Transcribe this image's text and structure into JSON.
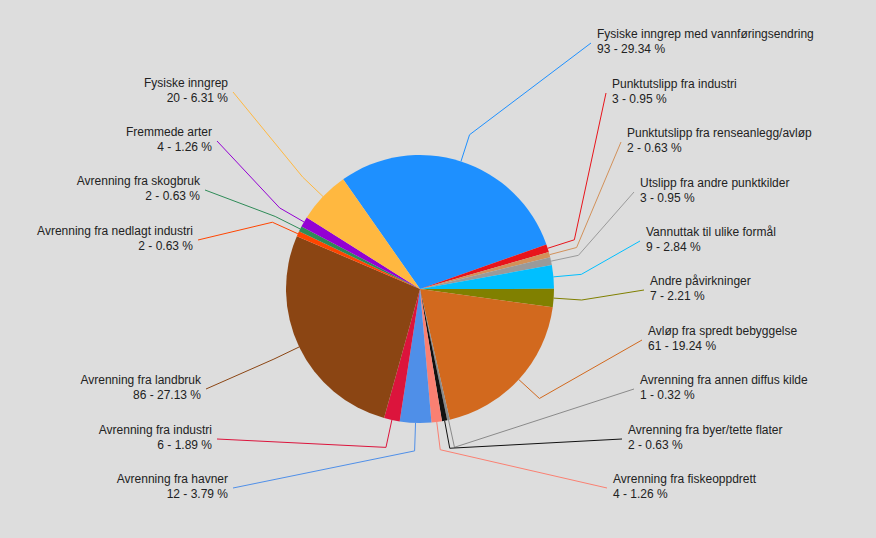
{
  "chart_data": {
    "type": "pie",
    "categories": [
      "Fysiske inngrep med vannføringsendring",
      "Punktutslipp fra industri",
      "Punktutslipp fra renseanlegg/avløp",
      "Utslipp fra andre punktkilder",
      "Vannuttak til ulike formål",
      "Andre påvirkninger",
      "Avløp fra spredt bebyggelse",
      "Avrenning fra annen diffus kilde",
      "Avrenning fra byer/tette flater",
      "Avrenning fra fiskeoppdrett",
      "Avrenning fra havner",
      "Avrenning fra industri",
      "Avrenning fra landbruk",
      "Avrenning fra nedlagt industri",
      "Avrenning fra skogbruk",
      "Fremmede arter",
      "Fysiske inngrep"
    ],
    "values": [
      93,
      3,
      2,
      3,
      9,
      7,
      61,
      1,
      2,
      4,
      12,
      6,
      86,
      2,
      2,
      4,
      20
    ],
    "value_labels": [
      "93 - 29.34 %",
      "3 - 0.95 %",
      "2 - 0.63 %",
      "3 - 0.95 %",
      "9 - 2.84 %",
      "7 - 2.21 %",
      "61 - 19.24 %",
      "1 - 0.32 %",
      "2 - 0.63 %",
      "4 - 1.26 %",
      "12 - 3.79 %",
      "6 - 1.89 %",
      "86 - 27.13 %",
      "2 - 0.63 %",
      "2 - 0.63 %",
      "4 - 1.26 %",
      "20 - 6.31 %"
    ],
    "colors": [
      "#1e90ff",
      "#e8141b",
      "#d2915a",
      "#9a9a9a",
      "#00bfff",
      "#808000",
      "#d2691e",
      "#8a8a8a",
      "#111111",
      "#fa8072",
      "#4f8fe8",
      "#dc143c",
      "#8b4513",
      "#ff4500",
      "#2e8b57",
      "#9400d3",
      "#ffb840"
    ],
    "data_labels": true
  }
}
